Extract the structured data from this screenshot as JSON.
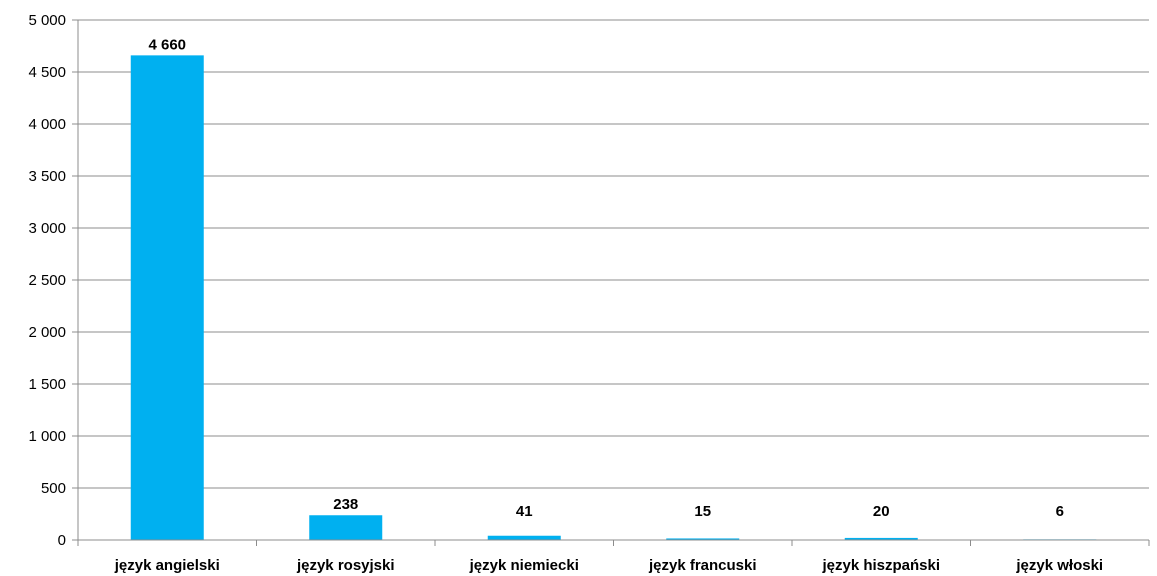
{
  "chart_data": {
    "type": "bar",
    "categories": [
      "język angielski",
      "język rosyjski",
      "język niemiecki",
      "język francuski",
      "język hiszpański",
      "język włoski"
    ],
    "values": [
      4660,
      238,
      41,
      15,
      20,
      6
    ],
    "data_labels": [
      "4 660",
      "238",
      "41",
      "15",
      "20",
      "6"
    ],
    "ylim": [
      0,
      5000
    ],
    "yticks": [
      0,
      500,
      1000,
      1500,
      2000,
      2500,
      3000,
      3500,
      4000,
      4500,
      5000
    ],
    "ytick_labels": [
      "0",
      "500",
      "1 000",
      "1 500",
      "2 000",
      "2 500",
      "3 000",
      "3 500",
      "4 000",
      "4 500",
      "5 000"
    ],
    "grid": true,
    "legend": "none",
    "colors": {
      "bar": "#00b0f0",
      "grid": "#8c8c8c",
      "axis": "#8c8c8c"
    }
  }
}
